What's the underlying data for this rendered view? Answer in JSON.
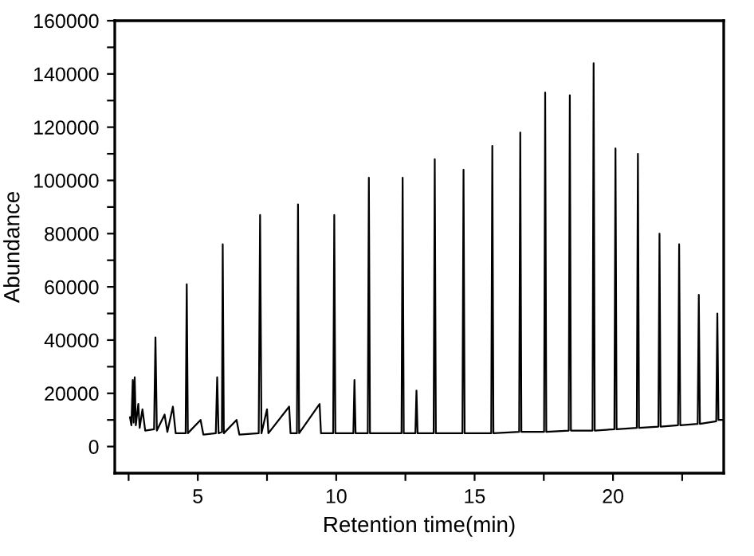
{
  "chart_data": {
    "type": "line",
    "xlabel": "Retention time(min)",
    "ylabel": "Abundance",
    "xlim": [
      2,
      24
    ],
    "ylim": [
      -10000,
      160000
    ],
    "xticks": [
      {
        "value": 2.5,
        "label": null
      },
      5,
      {
        "value": 7.5,
        "label": null
      },
      10,
      {
        "value": 12.5,
        "label": null
      },
      15,
      {
        "value": 17.5,
        "label": null
      },
      20,
      {
        "value": 22.5,
        "label": null
      }
    ],
    "yticks": [
      0,
      {
        "value": 10000,
        "label": null
      },
      20000,
      {
        "value": 30000,
        "label": null
      },
      40000,
      {
        "value": 50000,
        "label": null
      },
      60000,
      {
        "value": 70000,
        "label": null
      },
      80000,
      {
        "value": 90000,
        "label": null
      },
      100000,
      {
        "value": 110000,
        "label": null
      },
      120000,
      {
        "value": 130000,
        "label": null
      },
      140000,
      {
        "value": 150000,
        "label": null
      },
      160000
    ],
    "grid": false,
    "marker": "none",
    "line_style": "solid",
    "series": [
      {
        "color": "#000000",
        "x": [
          2.55,
          2.6,
          2.65,
          2.68,
          2.72,
          2.76,
          2.85,
          2.9,
          3.0,
          3.1,
          3.42,
          3.47,
          3.52,
          3.8,
          3.9,
          4.1,
          4.2,
          4.56,
          4.6,
          4.64,
          5.1,
          5.2,
          5.65,
          5.7,
          5.75,
          5.87,
          5.9,
          5.94,
          6.4,
          6.5,
          7.2,
          7.25,
          7.3,
          7.5,
          7.55,
          8.3,
          8.35,
          8.58,
          8.62,
          8.66,
          9.4,
          9.45,
          9.89,
          9.93,
          9.97,
          10.62,
          10.66,
          10.7,
          11.14,
          11.18,
          11.22,
          12.36,
          12.4,
          12.44,
          12.86,
          12.9,
          12.94,
          13.52,
          13.56,
          13.6,
          14.56,
          14.6,
          14.64,
          15.6,
          15.64,
          15.68,
          16.61,
          16.65,
          16.69,
          17.51,
          17.55,
          17.59,
          18.4,
          18.44,
          18.48,
          19.26,
          19.3,
          19.34,
          20.05,
          20.09,
          20.13,
          20.86,
          20.9,
          20.94,
          21.64,
          21.68,
          21.72,
          22.35,
          22.39,
          22.43,
          23.06,
          23.1,
          23.14,
          23.73,
          23.77,
          23.81,
          23.95
        ],
        "values": [
          11000,
          8000,
          25000,
          9000,
          26000,
          8000,
          16000,
          7000,
          14000,
          6000,
          6500,
          41000,
          6000,
          12000,
          5500,
          15000,
          5000,
          5000,
          61000,
          5000,
          10000,
          4500,
          5000,
          26000,
          5000,
          5500,
          76000,
          5000,
          10000,
          4500,
          5000,
          87000,
          5000,
          14000,
          5000,
          15000,
          5000,
          5000,
          91000,
          5000,
          16000,
          5000,
          5000,
          87000,
          5000,
          5000,
          25000,
          5000,
          5000,
          101000,
          5000,
          5000,
          101000,
          5000,
          5000,
          21000,
          5000,
          5000,
          108000,
          5000,
          5000,
          104000,
          5000,
          5000,
          113000,
          5000,
          5500,
          118000,
          5500,
          5500,
          133000,
          5500,
          6000,
          132000,
          6000,
          6000,
          144000,
          6000,
          6500,
          112000,
          6500,
          7000,
          110000,
          7000,
          7500,
          80000,
          7500,
          8000,
          76000,
          8000,
          8500,
          57000,
          8500,
          9500,
          50000,
          10000,
          10000
        ]
      }
    ]
  }
}
